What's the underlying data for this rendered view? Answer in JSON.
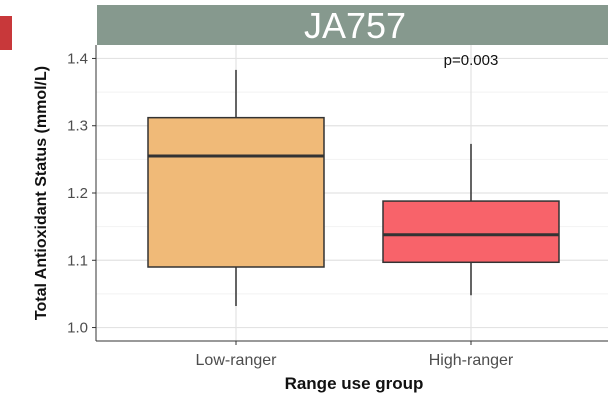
{
  "banner": {
    "title": "JA757",
    "background": "#86998e"
  },
  "left_accent_color": "#c8383a",
  "chart_data": {
    "type": "box",
    "xlabel": "Range use group",
    "ylabel": "Total Antioxidant Status (mmol/L)",
    "categories": [
      "Low-ranger",
      "High-ranger"
    ],
    "ylim": [
      0.98,
      1.42
    ],
    "yticks": [
      1.0,
      1.1,
      1.2,
      1.3,
      1.4
    ],
    "ytick_labels": [
      "1.0",
      "1.1",
      "1.2",
      "1.3",
      "1.4"
    ],
    "grid": true,
    "boxes": [
      {
        "category": "Low-ranger",
        "whisker_low": 1.032,
        "q1": 1.09,
        "median": 1.255,
        "q3": 1.312,
        "whisker_high": 1.383,
        "fill": "#f0ba78"
      },
      {
        "category": "High-ranger",
        "whisker_low": 1.048,
        "q1": 1.097,
        "median": 1.138,
        "q3": 1.188,
        "whisker_high": 1.273,
        "fill": "#f8636a"
      }
    ],
    "annotation": "p=0.003"
  }
}
